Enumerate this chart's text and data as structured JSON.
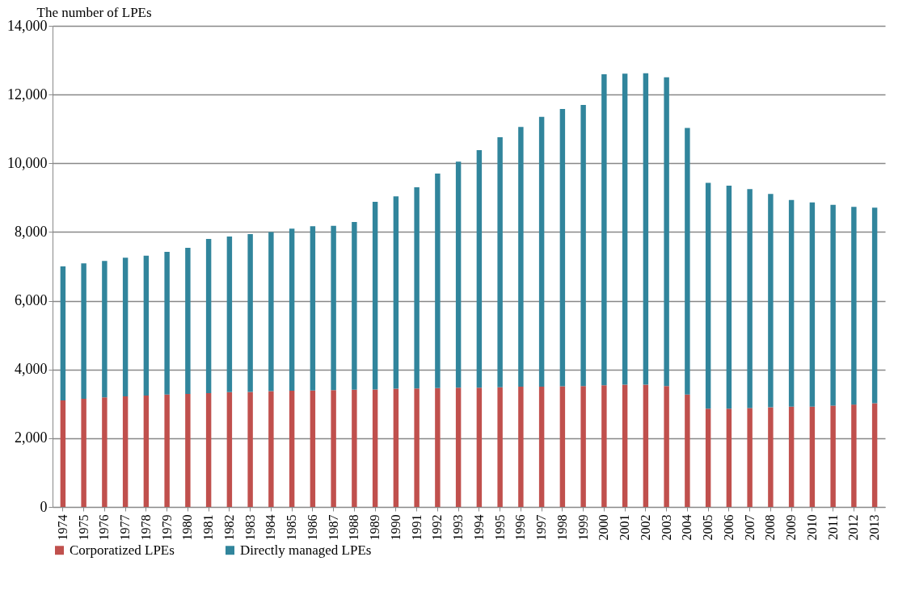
{
  "chart_data": {
    "type": "bar",
    "stacked": true,
    "ylabel": "The number of LPEs",
    "categories": [
      "1974",
      "1975",
      "1976",
      "1977",
      "1978",
      "1979",
      "1980",
      "1981",
      "1982",
      "1983",
      "1984",
      "1985",
      "1986",
      "1987",
      "1988",
      "1989",
      "1990",
      "1991",
      "1992",
      "1993",
      "1994",
      "1995",
      "1996",
      "1997",
      "1998",
      "1999",
      "2000",
      "2001",
      "2002",
      "2003",
      "2004",
      "2005",
      "2006",
      "2007",
      "2008",
      "2009",
      "2010",
      "2011",
      "2012",
      "2013"
    ],
    "series": [
      {
        "name": "Corporatized LPEs",
        "color": "#c0504d",
        "values": [
          3100,
          3150,
          3190,
          3220,
          3240,
          3270,
          3290,
          3310,
          3340,
          3350,
          3370,
          3380,
          3390,
          3400,
          3410,
          3420,
          3440,
          3450,
          3460,
          3470,
          3470,
          3480,
          3500,
          3500,
          3510,
          3520,
          3540,
          3560,
          3560,
          3520,
          3270,
          2860,
          2860,
          2880,
          2900,
          2920,
          2920,
          2950,
          2980,
          3020
        ]
      },
      {
        "name": "Directly managed LPEs",
        "color": "#31859c",
        "values": [
          3900,
          3940,
          3970,
          4030,
          4070,
          4150,
          4250,
          4490,
          4530,
          4590,
          4630,
          4720,
          4780,
          4780,
          4880,
          5460,
          5600,
          5850,
          6240,
          6580,
          6910,
          7280,
          7560,
          7850,
          8070,
          8180,
          9050,
          9050,
          9060,
          8980,
          7760,
          6570,
          6490,
          6370,
          6210,
          6010,
          5940,
          5840,
          5750,
          5690
        ]
      }
    ],
    "ylim": [
      0,
      14000
    ],
    "yticks": [
      {
        "value": 0,
        "label": "0"
      },
      {
        "value": 2000,
        "label": "2,000"
      },
      {
        "value": 4000,
        "label": "4,000"
      },
      {
        "value": 6000,
        "label": "6,000"
      },
      {
        "value": 8000,
        "label": "8,000"
      },
      {
        "value": 10000,
        "label": "10,000"
      },
      {
        "value": 12000,
        "label": "12,000"
      },
      {
        "value": 14000,
        "label": "14,000"
      }
    ],
    "grid": "y",
    "legend": "bottom"
  }
}
